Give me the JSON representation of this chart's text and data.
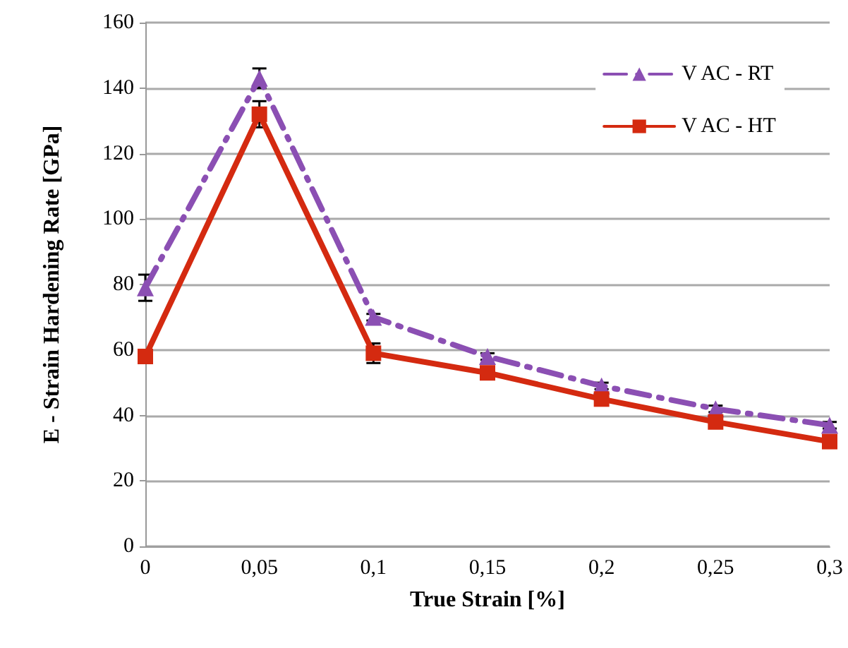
{
  "chart_data": {
    "type": "line",
    "xlabel": "True Strain [%]",
    "ylabel": "E - Strain Hardening Rate [GPa]",
    "categories": [
      "0",
      "0,05",
      "0,1",
      "0,15",
      "0,2",
      "0,25",
      "0,3"
    ],
    "series": [
      {
        "name": "V AC - RT",
        "color": "#8b4fb3",
        "marker": "triangle",
        "line_style": "dashed",
        "values": [
          79,
          143,
          70,
          58,
          49,
          42,
          37
        ],
        "errors": [
          4,
          3,
          1,
          1,
          1,
          1,
          1
        ]
      },
      {
        "name": "V AC - HT",
        "color": "#d42a10",
        "marker": "square",
        "line_style": "solid",
        "values": [
          58,
          132,
          59,
          53,
          45,
          38,
          32
        ],
        "errors": [
          null,
          4,
          3,
          null,
          null,
          null,
          null
        ]
      }
    ],
    "ylim": [
      0,
      160
    ],
    "yticks": [
      0,
      20,
      40,
      60,
      80,
      100,
      120,
      140,
      160
    ],
    "grid": "y",
    "legend": "top right"
  }
}
